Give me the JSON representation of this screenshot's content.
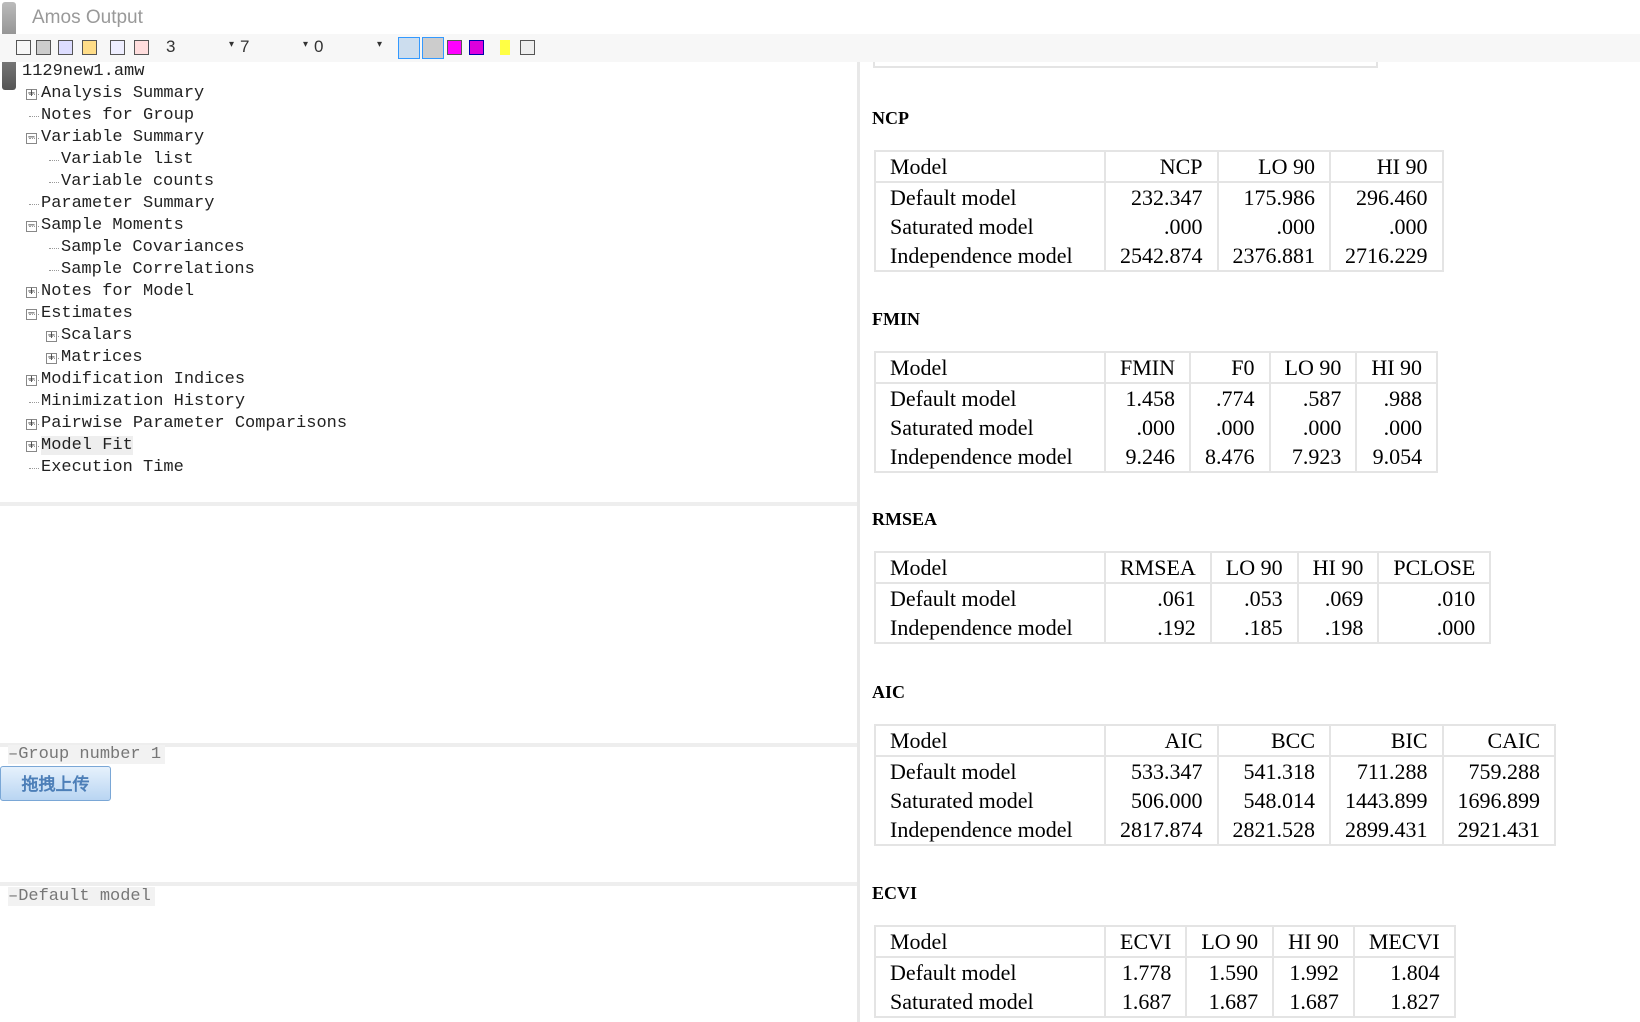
{
  "window": {
    "title": "Amos Output"
  },
  "toolbar": {
    "combos": [
      "3",
      "7",
      "0"
    ]
  },
  "tree": {
    "root": "1129new1.amw",
    "nodes": [
      {
        "label": "Analysis Summary",
        "depth": 1,
        "state": "collapsed"
      },
      {
        "label": "Notes for Group",
        "depth": 1,
        "state": "leaf"
      },
      {
        "label": "Variable Summary",
        "depth": 1,
        "state": "expanded"
      },
      {
        "label": "Variable list",
        "depth": 2,
        "state": "leaf"
      },
      {
        "label": "Variable counts",
        "depth": 2,
        "state": "leaf"
      },
      {
        "label": "Parameter Summary",
        "depth": 1,
        "state": "leaf"
      },
      {
        "label": "Sample Moments",
        "depth": 1,
        "state": "expanded"
      },
      {
        "label": "Sample Covariances",
        "depth": 2,
        "state": "leaf"
      },
      {
        "label": "Sample Correlations",
        "depth": 2,
        "state": "leaf"
      },
      {
        "label": "Notes for Model",
        "depth": 1,
        "state": "collapsed"
      },
      {
        "label": "Estimates",
        "depth": 1,
        "state": "expanded"
      },
      {
        "label": "Scalars",
        "depth": 2,
        "state": "collapsed"
      },
      {
        "label": "Matrices",
        "depth": 2,
        "state": "collapsed"
      },
      {
        "label": "Modification Indices",
        "depth": 1,
        "state": "collapsed"
      },
      {
        "label": "Minimization History",
        "depth": 1,
        "state": "leaf"
      },
      {
        "label": "Pairwise Parameter Comparisons",
        "depth": 1,
        "state": "collapsed"
      },
      {
        "label": "Model Fit",
        "depth": 1,
        "state": "collapsed",
        "selected": true
      },
      {
        "label": "Execution Time",
        "depth": 1,
        "state": "leaf"
      }
    ]
  },
  "groups": {
    "label": "Group number 1"
  },
  "upload_button": "拖拽上传",
  "models": {
    "label": "Default model"
  },
  "output": {
    "sections": [
      {
        "heading": "NCP",
        "columns": [
          "Model",
          "NCP",
          "LO 90",
          "HI 90"
        ],
        "rows": [
          [
            "Default model",
            "232.347",
            "175.986",
            "296.460"
          ],
          [
            "Saturated model",
            ".000",
            ".000",
            ".000"
          ],
          [
            "Independence model",
            "2542.874",
            "2376.881",
            "2716.229"
          ]
        ]
      },
      {
        "heading": "FMIN",
        "columns": [
          "Model",
          "FMIN",
          "F0",
          "LO 90",
          "HI 90"
        ],
        "rows": [
          [
            "Default model",
            "1.458",
            ".774",
            ".587",
            ".988"
          ],
          [
            "Saturated model",
            ".000",
            ".000",
            ".000",
            ".000"
          ],
          [
            "Independence model",
            "9.246",
            "8.476",
            "7.923",
            "9.054"
          ]
        ]
      },
      {
        "heading": "RMSEA",
        "columns": [
          "Model",
          "RMSEA",
          "LO 90",
          "HI 90",
          "PCLOSE"
        ],
        "rows": [
          [
            "Default model",
            ".061",
            ".053",
            ".069",
            ".010"
          ],
          [
            "Independence model",
            ".192",
            ".185",
            ".198",
            ".000"
          ]
        ]
      },
      {
        "heading": "AIC",
        "columns": [
          "Model",
          "AIC",
          "BCC",
          "BIC",
          "CAIC"
        ],
        "rows": [
          [
            "Default model",
            "533.347",
            "541.318",
            "711.288",
            "759.288"
          ],
          [
            "Saturated model",
            "506.000",
            "548.014",
            "1443.899",
            "1696.899"
          ],
          [
            "Independence model",
            "2817.874",
            "2821.528",
            "2899.431",
            "2921.431"
          ]
        ]
      },
      {
        "heading": "ECVI",
        "columns": [
          "Model",
          "ECVI",
          "LO 90",
          "HI 90",
          "MECVI"
        ],
        "rows": [
          [
            "Default model",
            "1.778",
            "1.590",
            "1.992",
            "1.804"
          ],
          [
            "Saturated model",
            "1.687",
            "1.687",
            "1.687",
            "1.827"
          ]
        ]
      }
    ]
  }
}
